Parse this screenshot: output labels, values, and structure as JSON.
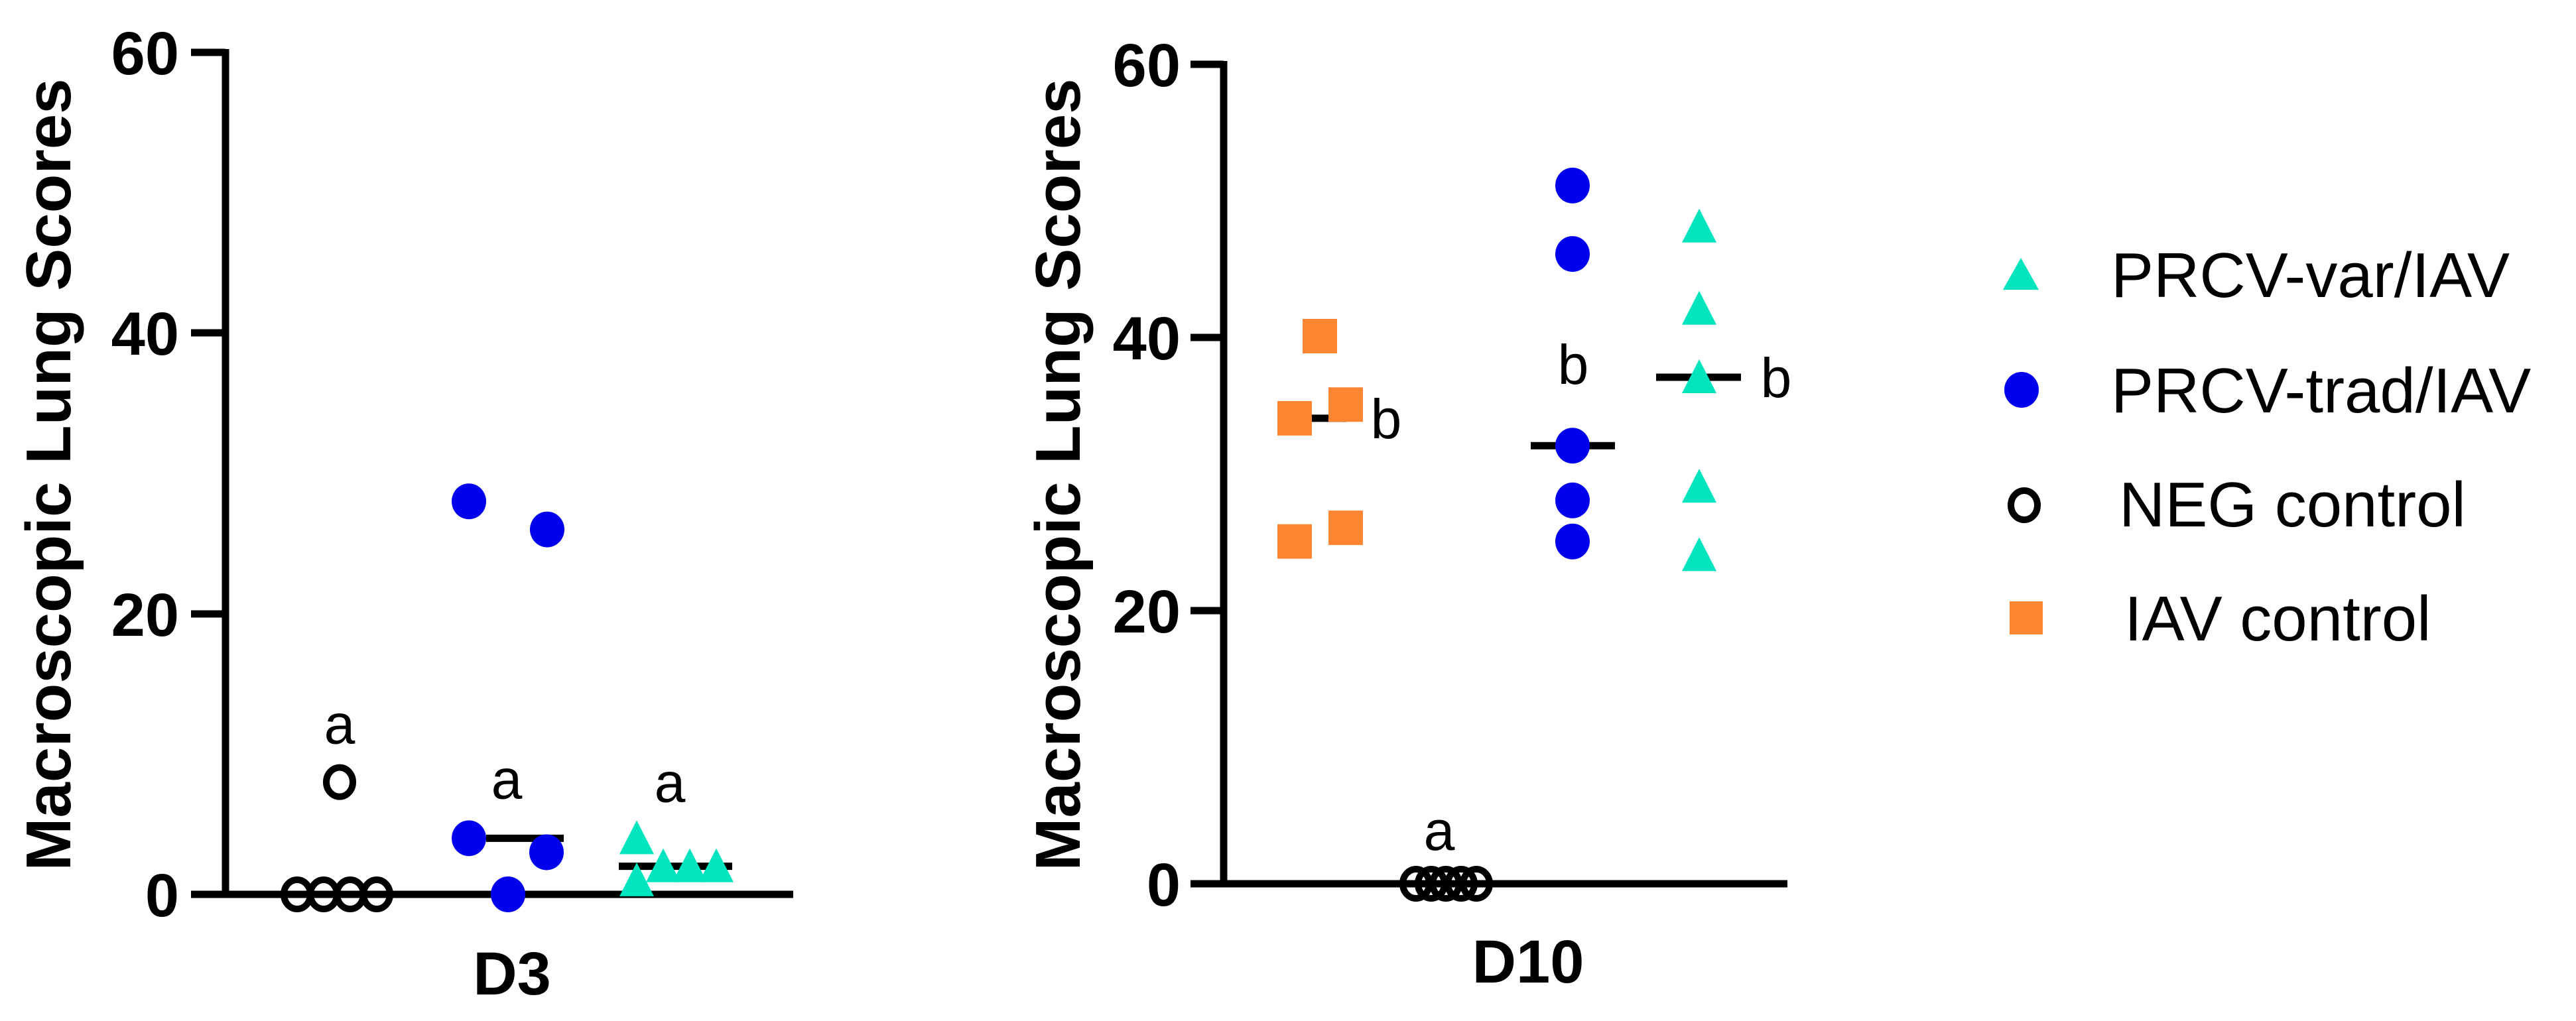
{
  "figure": {
    "y_axis_title": "Macroscopic Lung Scores",
    "y_ticks": [
      "0",
      "20",
      "40",
      "60"
    ]
  },
  "legend": {
    "items": [
      {
        "label": "PRCV-var/IAV",
        "marker": "triangle-icon",
        "color": "#00E5BE",
        "filled": true
      },
      {
        "label": "PRCV-trad/IAV",
        "marker": "circle-icon",
        "color": "#0000EE",
        "filled": true
      },
      {
        "label": "NEG control",
        "marker": "open-circle-icon",
        "color": "#000000",
        "filled": false
      },
      {
        "label": "IAV control",
        "marker": "square-icon",
        "color": "#FF8533",
        "filled": true
      }
    ]
  },
  "chart_data": [
    {
      "type": "scatter",
      "title": "D3",
      "xlabel": "D3",
      "ylabel": "Macroscopic Lung Scores",
      "ylim": [
        0,
        60
      ],
      "yticks": [
        0,
        20,
        40,
        60
      ],
      "grid": false,
      "legend_position": "right",
      "series": [
        {
          "name": "NEG control",
          "values": [
            0,
            0,
            0,
            0,
            8
          ],
          "median": 0,
          "significance": "a"
        },
        {
          "name": "PRCV-trad/IAV",
          "values": [
            28,
            26,
            4,
            3,
            0
          ],
          "median": 4,
          "significance": "a"
        },
        {
          "name": "PRCV-var/IAV",
          "values": [
            4,
            1,
            2,
            2,
            2
          ],
          "median": 2,
          "significance": "a"
        }
      ]
    },
    {
      "type": "scatter",
      "title": "D10",
      "xlabel": "D10",
      "ylabel": "Macroscopic Lung Scores",
      "ylim": [
        0,
        60
      ],
      "yticks": [
        0,
        20,
        40,
        60
      ],
      "grid": false,
      "legend_position": "right",
      "series": [
        {
          "name": "IAV control",
          "values": [
            40,
            34,
            35,
            25,
            26
          ],
          "median": 34,
          "significance": "b"
        },
        {
          "name": "NEG control",
          "values": [
            0,
            0,
            0,
            0,
            0
          ],
          "median": 0,
          "significance": "a"
        },
        {
          "name": "PRCV-trad/IAV",
          "values": [
            51,
            46,
            32,
            28,
            25
          ],
          "median": 32,
          "significance": "b"
        },
        {
          "name": "PRCV-var/IAV",
          "values": [
            48,
            42,
            37,
            29,
            24
          ],
          "median": 37,
          "significance": "b"
        }
      ]
    }
  ]
}
